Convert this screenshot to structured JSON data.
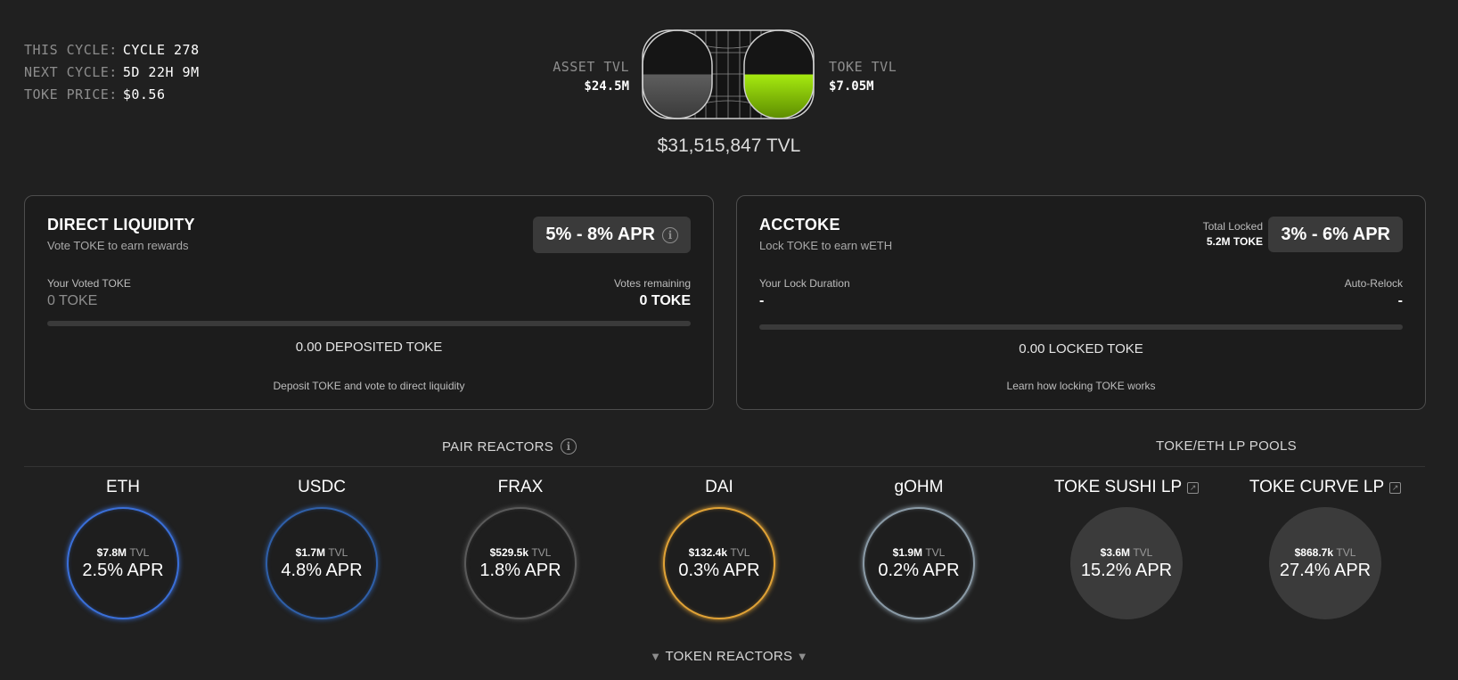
{
  "cycle": {
    "this_cycle_label": "THIS CYCLE:",
    "this_cycle_value": "CYCLE 278",
    "next_cycle_label": "NEXT CYCLE:",
    "next_cycle_value": "5D 22H 9M",
    "price_label": "TOKE PRICE:",
    "price_value": "$0.56"
  },
  "tvl": {
    "asset_label": "ASSET TVL",
    "asset_value": "$24.5M",
    "toke_label": "TOKE TVL",
    "toke_value": "$7.05M",
    "total": "$31,515,847 TVL",
    "asset_fill_pct": 50,
    "toke_fill_pct": 50,
    "accent_color": "#9bd900"
  },
  "direct": {
    "title": "DIRECT LIQUIDITY",
    "subtitle": "Vote TOKE to earn rewards",
    "apr": "5% - 8% APR",
    "voted_label": "Your Voted TOKE",
    "voted_value": "0 TOKE",
    "remaining_label": "Votes remaining",
    "remaining_value": "0 TOKE",
    "progress_pct": 0,
    "deposited": "0.00 DEPOSITED TOKE",
    "footer": "Deposit TOKE and vote to direct liquidity"
  },
  "acctoke": {
    "title": "ACCTOKE",
    "subtitle": "Lock TOKE to earn wETH",
    "total_locked_label": "Total Locked",
    "total_locked_value": "5.2M TOKE",
    "apr": "3% - 6% APR",
    "duration_label": "Your Lock Duration",
    "duration_value": "-",
    "relock_label": "Auto-Relock",
    "relock_value": "-",
    "progress_pct": 0,
    "locked": "0.00 LOCKED TOKE",
    "footer": "Learn how locking TOKE works"
  },
  "pair_reactors": {
    "title": "PAIR REACTORS",
    "items": [
      {
        "name": "ETH",
        "tvl": "$7.8M",
        "unit": "TVL",
        "apr": "2.5% APR",
        "color": "#3a6fd8"
      },
      {
        "name": "USDC",
        "tvl": "$1.7M",
        "unit": "TVL",
        "apr": "4.8% APR",
        "color": "#2f5fa8"
      },
      {
        "name": "FRAX",
        "tvl": "$529.5k",
        "unit": "TVL",
        "apr": "1.8% APR",
        "color": "#5a5a5a"
      },
      {
        "name": "DAI",
        "tvl": "$132.4k",
        "unit": "TVL",
        "apr": "0.3% APR",
        "color": "#e0a236"
      },
      {
        "name": "gOHM",
        "tvl": "$1.9M",
        "unit": "TVL",
        "apr": "0.2% APR",
        "color": "#8a9aa6"
      }
    ]
  },
  "lp_pools": {
    "title": "TOKE/ETH LP POOLS",
    "items": [
      {
        "name": "TOKE SUSHI LP",
        "tvl": "$3.6M",
        "unit": "TVL",
        "apr": "15.2% APR"
      },
      {
        "name": "TOKE CURVE LP",
        "tvl": "$868.7k",
        "unit": "TVL",
        "apr": "27.4% APR"
      }
    ]
  },
  "token_reactors": {
    "label": "TOKEN REACTORS"
  }
}
